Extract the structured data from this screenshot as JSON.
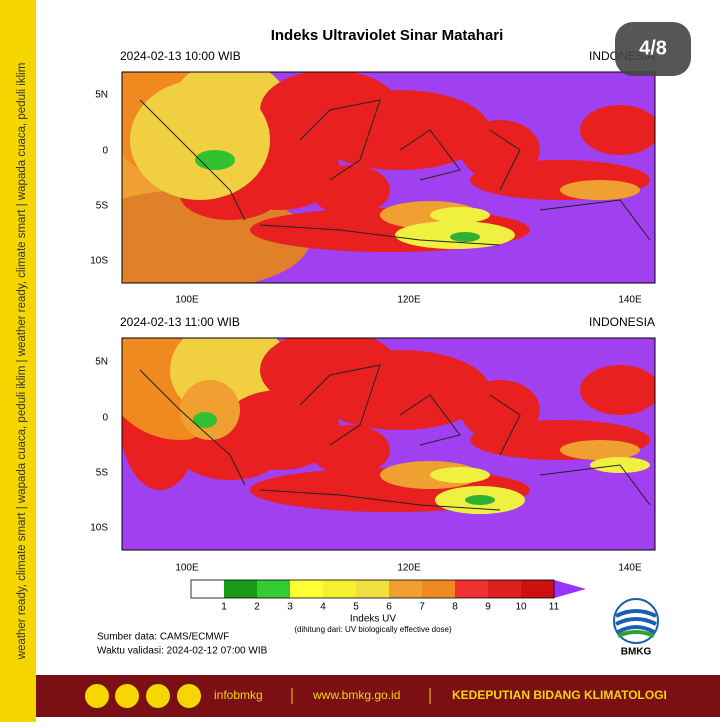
{
  "header": {
    "title": "Indeks Ultraviolet Sinar Matahari"
  },
  "panels": [
    {
      "time": "2024-02-13  10:00 WIB",
      "region": "INDONESIA"
    },
    {
      "time": "2024-02-13  11:00 WIB",
      "region": "INDONESIA"
    }
  ],
  "map": {
    "lat_labels": [
      "5N",
      "0",
      "5S",
      "10S"
    ],
    "lon_labels": [
      "100E",
      "120E",
      "140E"
    ]
  },
  "colorbar": {
    "ticks": [
      1,
      2,
      3,
      4,
      5,
      6,
      7,
      8,
      9,
      10,
      11
    ],
    "title": "Indeks UV",
    "note": "(dihitung dari: UV biologically effective dose)"
  },
  "source": "Sumber data: CAMS/ECMWF",
  "validity": "Waktu validasi: 2024-02-12 07:00 WIB",
  "logo": "BMKG",
  "page_indicator": "4/8",
  "side_text": "weather ready, climate smart  |  wapada cuaca, peduli iklim  |  weather ready, climate smart  |  wapada cuaca, peduli iklim",
  "footer": {
    "handle": "infobmkg",
    "url": "www.bmkg.go.id",
    "dept": "KEDEPUTIAN BIDANG KLIMATOLOGI"
  }
}
